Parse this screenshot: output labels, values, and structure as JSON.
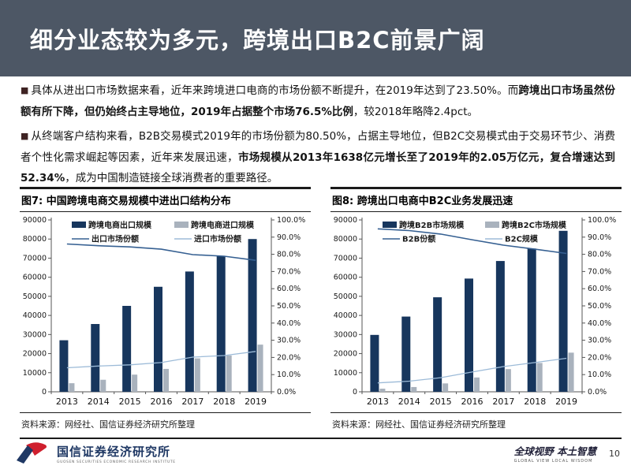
{
  "bullet_char": "■",
  "header": {
    "title": "细分业态较为多元，跨境出口B2C前景广阔"
  },
  "bullets": [
    {
      "segments": [
        {
          "t": "具体从进出口市场数据来看，近年来跨境进口电商的市场份额不断提升，在2019年达到了23.50%。而",
          "b": false
        },
        {
          "t": "跨境出口市场虽然份额有所下降，但仍始终占主导地位，2019年占据整个市场76.5%比例",
          "b": true
        },
        {
          "t": "，较2018年略降2.4pct。",
          "b": false
        }
      ]
    },
    {
      "segments": [
        {
          "t": "从终端客户结构来看，B2B交易模式2019年的市场份额为80.50%，占据主导地位，但B2C交易模式由于交易环节少、消费者个性化需求崛起等因素，近年来发展迅速，",
          "b": false
        },
        {
          "t": "市场规模从2013年1638亿元增长至了2019年的2.05万亿元，复合增速达到52.34%",
          "b": true
        },
        {
          "t": "，成为中国制造链接全球消费者的重要路径。",
          "b": false
        }
      ]
    }
  ],
  "figures": [
    {
      "title": "图7: 中国跨境电商交易规模中进出口结构分布",
      "source": "资料来源：网经社、国信证券经济研究所整理"
    },
    {
      "title": "图8: 跨境出口电商中B2C业务发展迅速",
      "source": "资料来源：网经社、国信证券经济研究所整理"
    }
  ],
  "chart_data": [
    {
      "type": "bar+line",
      "categories": [
        "2013",
        "2014",
        "2015",
        "2016",
        "2017",
        "2018",
        "2019"
      ],
      "series": [
        {
          "name": "跨境电商出口规模",
          "type": "bar",
          "axis": "left",
          "values": [
            27000,
            35500,
            45000,
            55000,
            63000,
            71000,
            80000
          ]
        },
        {
          "name": "跨境电商进口规模",
          "type": "bar",
          "axis": "left",
          "values": [
            4500,
            6300,
            9000,
            12000,
            17500,
            19000,
            24700
          ]
        },
        {
          "name": "出口市场份额",
          "type": "line",
          "axis": "right",
          "values": [
            86.0,
            85.0,
            84.3,
            83.0,
            79.8,
            78.9,
            76.5
          ]
        },
        {
          "name": "进口市场份额",
          "type": "line",
          "axis": "right",
          "values": [
            14.0,
            15.0,
            15.7,
            17.0,
            20.2,
            21.1,
            23.5
          ]
        }
      ],
      "left_axis": {
        "min": 0,
        "max": 90000,
        "step": 10000
      },
      "right_axis": {
        "min": 0,
        "max": 100,
        "step": 10,
        "suffix": "%"
      },
      "legend_position": "top-inside",
      "grid": false
    },
    {
      "type": "bar+line",
      "categories": [
        "2013",
        "2014",
        "2015",
        "2016",
        "2017",
        "2018",
        "2019"
      ],
      "series": [
        {
          "name": "跨境B2B市场规模",
          "type": "bar",
          "axis": "left",
          "values": [
            29800,
            39400,
            49500,
            59300,
            68500,
            75000,
            84300
          ]
        },
        {
          "name": "跨境B2C市场规模",
          "type": "bar",
          "axis": "left",
          "values": [
            1638,
            2500,
            4400,
            7500,
            11900,
            15100,
            20500
          ]
        },
        {
          "name": "B2B份额",
          "type": "line",
          "axis": "right",
          "values": [
            94.8,
            93.8,
            91.8,
            88.5,
            85.3,
            83.0,
            80.5
          ]
        },
        {
          "name": "B2C规模",
          "type": "line",
          "axis": "right",
          "values": [
            5.2,
            6.2,
            8.2,
            11.5,
            14.7,
            17.0,
            19.5
          ]
        }
      ],
      "left_axis": {
        "min": 0,
        "max": 90000,
        "step": 10000
      },
      "right_axis": {
        "min": 0,
        "max": 100,
        "step": 10,
        "suffix": "%"
      },
      "legend_position": "top-inside",
      "grid": false
    }
  ],
  "footer": {
    "logo_text": "国信证券经济研究所",
    "logo_sub": "GUOSEN SECURITIES ECONOMIC RESEARCH INSTITUTE",
    "slogan_cn": "全球视野 本土智慧",
    "slogan_en": "GLOBAL VIEW   LOCAL WISDOM",
    "page": "10"
  },
  "colors": {
    "header_bg": "#4d5765",
    "bar_navy": "#17365d",
    "bar_gray": "#a9b2bd",
    "line_dark": "#366092",
    "line_light": "#9dbbd8",
    "axis": "#555555",
    "bullet": "#3f2323",
    "brand_navy": "#1f3864",
    "brand_red": "#cf1f2e"
  }
}
